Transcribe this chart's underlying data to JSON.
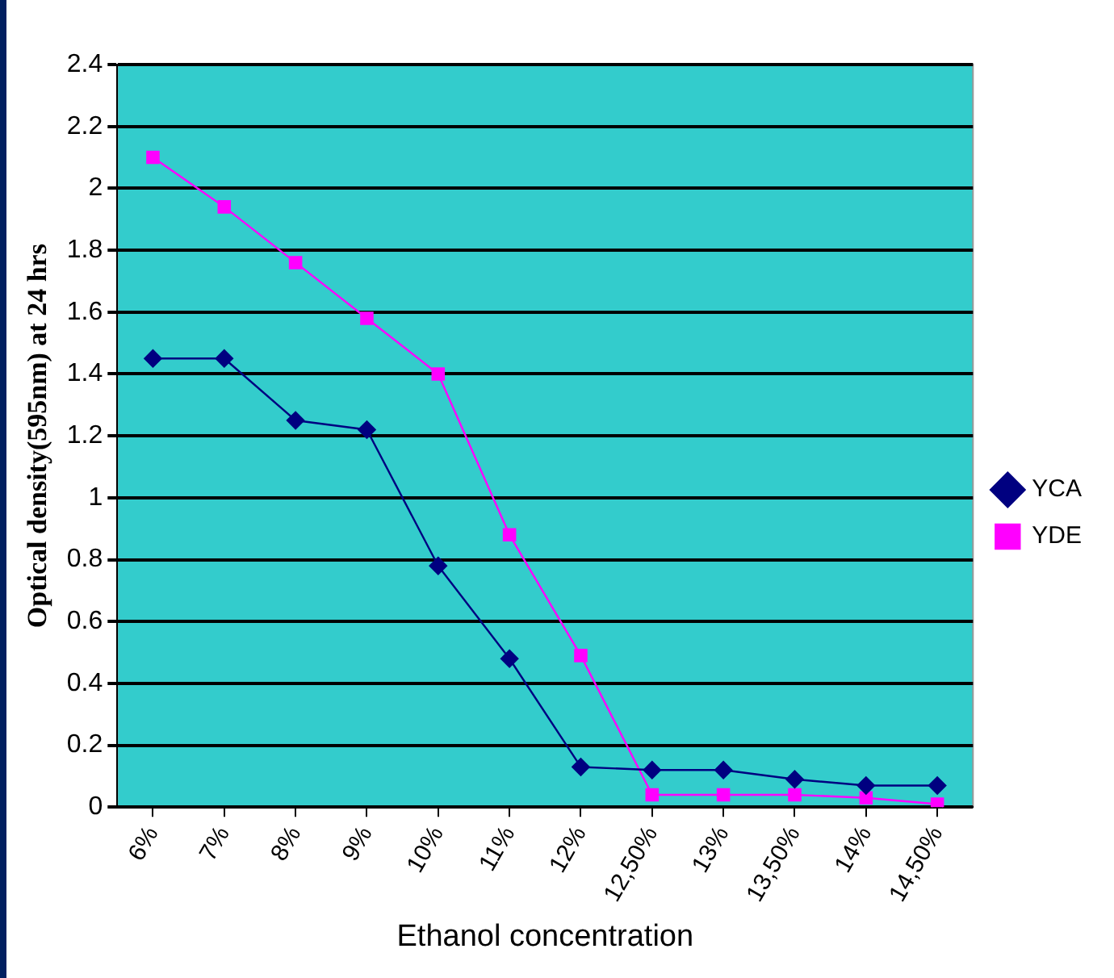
{
  "chart_data": {
    "type": "line",
    "xlabel": "Ethanol concentration",
    "ylabel": "Optical density(595nm) at 24 hrs",
    "categories": [
      "6%",
      "7%",
      "8%",
      "9%",
      "10%",
      "11%",
      "12%",
      "12,50%",
      "13%",
      "13,50%",
      "14%",
      "14,50%"
    ],
    "series": [
      {
        "name": "YCA",
        "color": "#000080",
        "marker": "diamond",
        "values": [
          1.45,
          1.45,
          1.25,
          1.22,
          0.78,
          0.48,
          0.13,
          0.12,
          0.12,
          0.09,
          0.07,
          0.07
        ]
      },
      {
        "name": "YDE",
        "color": "#ff00ff",
        "marker": "square",
        "values": [
          2.1,
          1.94,
          1.76,
          1.58,
          1.4,
          0.88,
          0.49,
          0.04,
          0.04,
          0.04,
          0.03,
          0.01
        ]
      }
    ],
    "ylim": [
      0,
      2.4
    ],
    "yticks": [
      0,
      0.2,
      0.4,
      0.6,
      0.8,
      1,
      1.2,
      1.4,
      1.6,
      1.8,
      2,
      2.2,
      2.4
    ],
    "grid": "y",
    "legend": "right"
  }
}
